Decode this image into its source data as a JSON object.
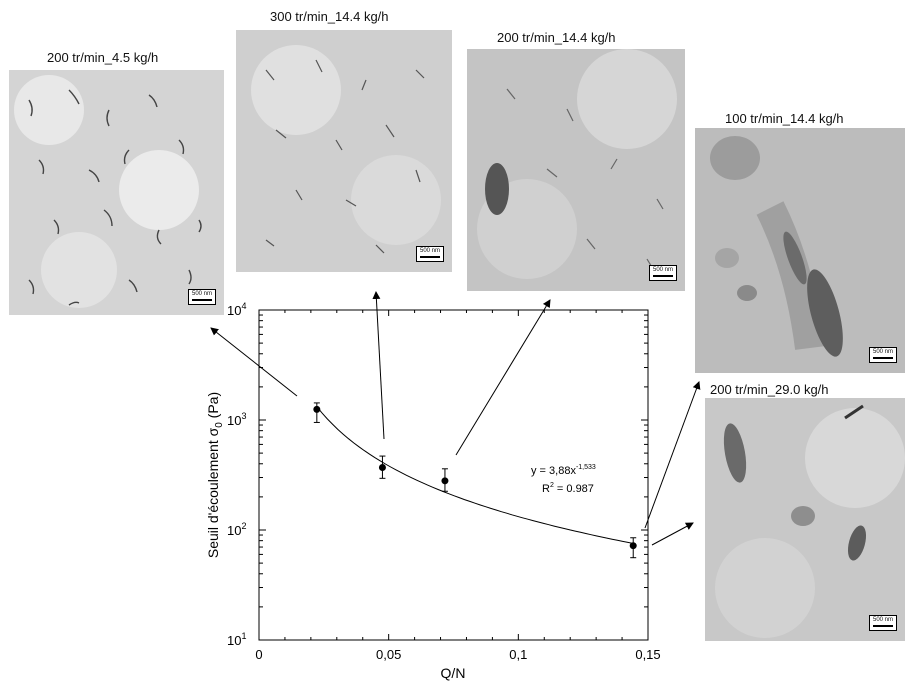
{
  "micrographs": [
    {
      "title": "200 tr/min_4.5 kg/h",
      "scale": "500 nm",
      "tone": "#d2d2d2"
    },
    {
      "title": "300 tr/min_14.4 kg/h",
      "scale": "500 nm",
      "tone": "#cfcfcf"
    },
    {
      "title": "200 tr/min_14.4 kg/h",
      "scale": "500 nm",
      "tone": "#c5c5c5"
    },
    {
      "title": "100 tr/min_14.4 kg/h",
      "scale": "500 nm",
      "tone": "#bdbdbd"
    },
    {
      "title": "200 tr/min_29.0 kg/h",
      "scale": "500 nm",
      "tone": "#c9c9c9"
    }
  ],
  "chart_data": {
    "type": "scatter",
    "xlabel": "Q/N",
    "ylabel_text": "Seuil d'écoulement σ",
    "ylabel_subscript": "0",
    "ylabel_unit": " (Pa)",
    "yscale": "log",
    "xlim": [
      0,
      0.15
    ],
    "ylim": [
      10,
      10000
    ],
    "x_ticks": [
      {
        "value": 0,
        "label": "0"
      },
      {
        "value": 0.05,
        "label": "0,05"
      },
      {
        "value": 0.1,
        "label": "0,1"
      },
      {
        "value": 0.15,
        "label": "0,15"
      }
    ],
    "y_ticks": [
      {
        "value": 10,
        "base": "10",
        "exp": "1"
      },
      {
        "value": 100,
        "base": "10",
        "exp": "2"
      },
      {
        "value": 1000,
        "base": "10",
        "exp": "3"
      },
      {
        "value": 10000,
        "base": "10",
        "exp": "4"
      }
    ],
    "points": [
      {
        "x": 0.0223,
        "y": 1250,
        "err_low": 950,
        "err_high": 1430
      },
      {
        "x": 0.0476,
        "y": 370,
        "err_low": 295,
        "err_high": 470
      },
      {
        "x": 0.0717,
        "y": 280,
        "err_low": 225,
        "err_high": 360
      },
      {
        "x": 0.1443,
        "y": 72,
        "err_low": 56,
        "err_high": 85
      }
    ],
    "fit": {
      "a": 3.88,
      "b": -1.533
    },
    "annotation_eq": "y = 3,88x",
    "annotation_eq_exp": "-1,533",
    "annotation_r2_prefix": "R",
    "annotation_r2_exp": "2",
    "annotation_r2_value": " = 0.987",
    "grid": false,
    "legend": "none"
  }
}
